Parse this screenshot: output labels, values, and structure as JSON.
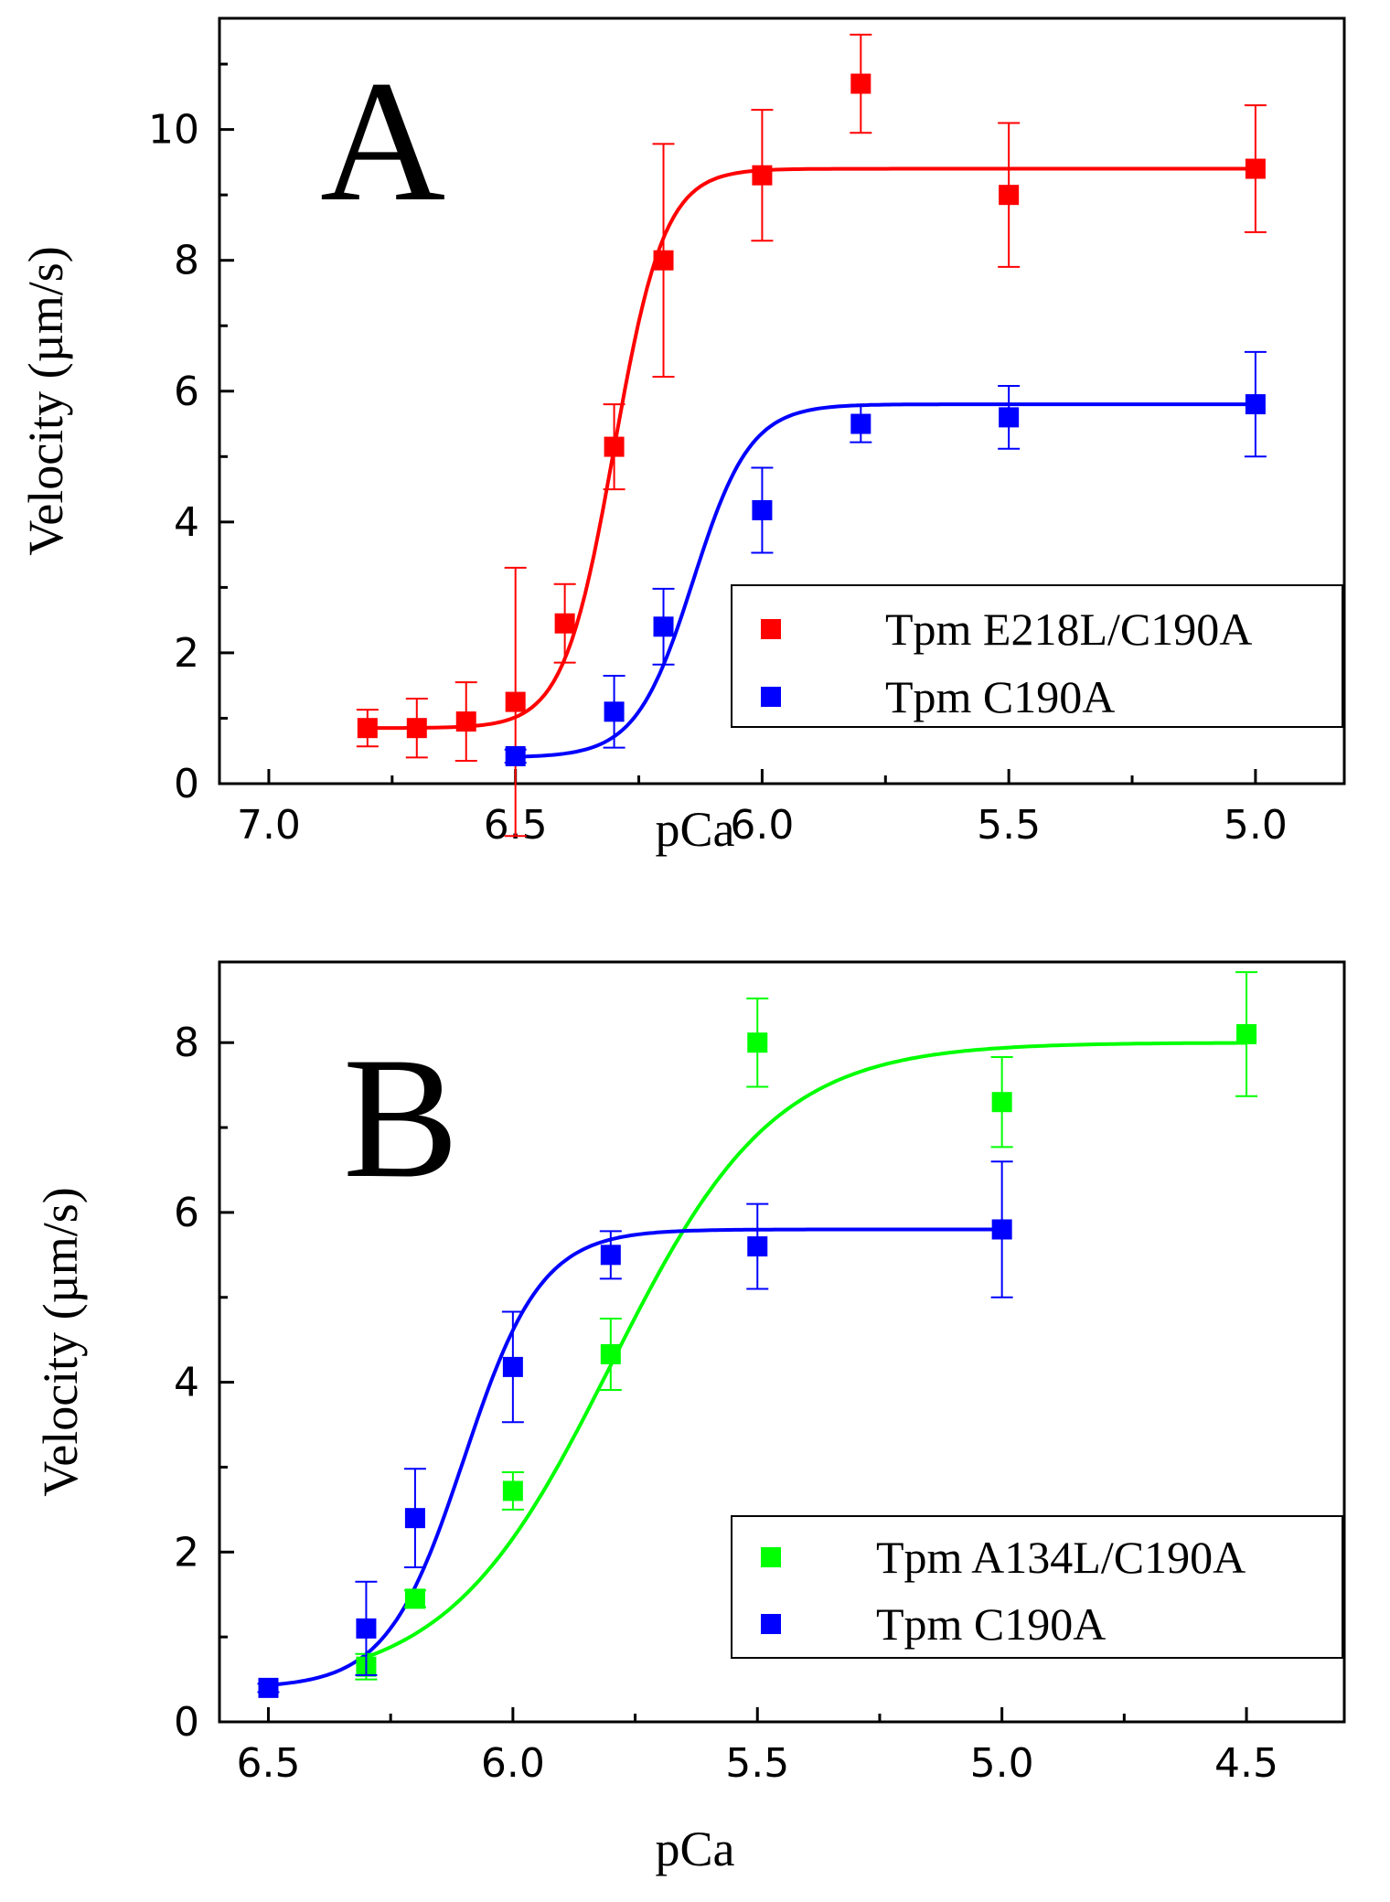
{
  "chart_data": [
    {
      "type": "scatter",
      "panel_label": "A",
      "xlabel": "pCa",
      "ylabel": "Velocity (µm/s)",
      "xlim": [
        7.1,
        4.82
      ],
      "ylim": [
        0,
        11.7
      ],
      "x_reversed": true,
      "xticks": [
        7.0,
        6.5,
        6.0,
        5.5,
        5.0
      ],
      "xtick_labels": [
        "7.0",
        "6.5",
        "6.0",
        "5.5",
        "5.0"
      ],
      "yticks": [
        0,
        2,
        4,
        6,
        8,
        10
      ],
      "ytick_labels": [
        "0",
        "2",
        "4",
        "6",
        "8",
        "10"
      ],
      "grid": false,
      "legend_position": "lower-right",
      "series": [
        {
          "name": "Tpm E218L/C190A",
          "color": "#ff0000",
          "marker": "square",
          "x": [
            6.8,
            6.7,
            6.6,
            6.5,
            6.4,
            6.3,
            6.2,
            6.0,
            5.8,
            5.5,
            5.0
          ],
          "y": [
            0.85,
            0.85,
            0.95,
            1.25,
            2.45,
            5.15,
            8.0,
            9.3,
            10.7,
            9.0,
            9.4
          ],
          "err": [
            0.28,
            0.45,
            0.6,
            2.05,
            0.6,
            0.65,
            1.78,
            1.0,
            0.75,
            1.1,
            0.97
          ],
          "fit": {
            "bottom": 0.85,
            "top": 9.4,
            "pCa50": 6.3,
            "hill": 8.5
          }
        },
        {
          "name": "Tpm C190A",
          "color": "#0000ff",
          "marker": "square",
          "x": [
            6.5,
            6.3,
            6.2,
            6.0,
            5.8,
            5.5,
            5.0
          ],
          "y": [
            0.42,
            1.1,
            2.4,
            4.18,
            5.5,
            5.6,
            5.8
          ],
          "err": [
            0.1,
            0.55,
            0.58,
            0.65,
            0.28,
            0.48,
            0.8
          ],
          "fit": {
            "bottom": 0.4,
            "top": 5.8,
            "pCa50": 6.14,
            "hill": 7.5
          }
        }
      ]
    },
    {
      "type": "scatter",
      "panel_label": "B",
      "xlabel": "pCa",
      "ylabel": "Velocity (µm/s)",
      "xlim": [
        6.6,
        4.3
      ],
      "ylim": [
        0,
        8.95
      ],
      "x_reversed": true,
      "xticks": [
        6.5,
        6.0,
        5.5,
        5.0,
        4.5
      ],
      "xtick_labels": [
        "6.5",
        "6.0",
        "5.5",
        "5.0",
        "4.5"
      ],
      "yticks": [
        0,
        2,
        4,
        6,
        8
      ],
      "ytick_labels": [
        "0",
        "2",
        "4",
        "6",
        "8"
      ],
      "grid": false,
      "legend_position": "lower-right",
      "series": [
        {
          "name": "Tpm A134L/C190A",
          "color": "#00ff00",
          "marker": "square",
          "x": [
            6.3,
            6.2,
            6.0,
            5.8,
            5.5,
            5.0,
            4.5
          ],
          "y": [
            0.65,
            1.45,
            2.72,
            4.33,
            8.0,
            7.3,
            8.1
          ],
          "err": [
            0.15,
            0.1,
            0.22,
            0.42,
            0.52,
            0.53,
            0.73
          ],
          "fit": {
            "bottom": 0.4,
            "top": 8.0,
            "pCa50": 5.8,
            "hill": 2.6
          }
        },
        {
          "name": "Tpm C190A",
          "color": "#0000ff",
          "marker": "square",
          "x": [
            6.5,
            6.3,
            6.2,
            6.0,
            5.8,
            5.5,
            5.0
          ],
          "y": [
            0.4,
            1.1,
            2.4,
            4.18,
            5.5,
            5.6,
            5.8
          ],
          "err": [
            0.05,
            0.55,
            0.58,
            0.65,
            0.28,
            0.5,
            0.8
          ],
          "fit": {
            "bottom": 0.4,
            "top": 5.8,
            "pCa50": 6.1,
            "hill": 5.5
          }
        }
      ]
    }
  ]
}
